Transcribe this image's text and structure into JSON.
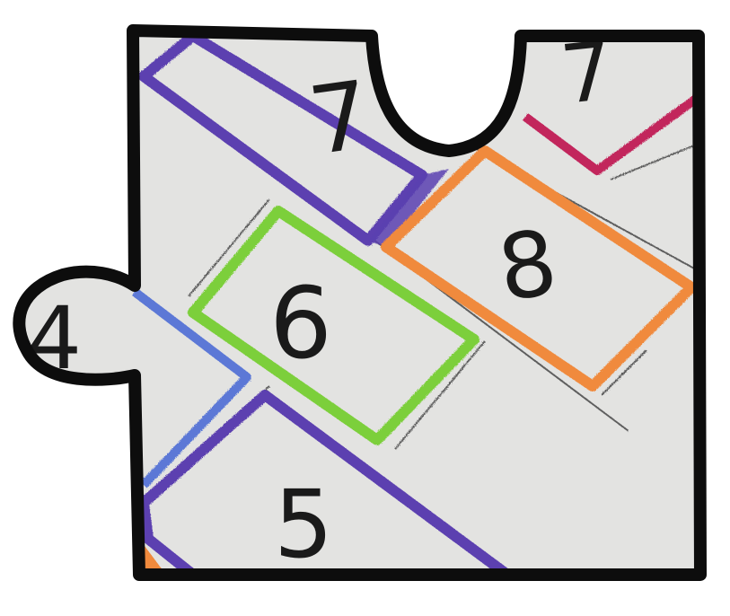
{
  "scene": {
    "description_kind": "hand-drawn hopscotch puzzle piece",
    "squares": [
      {
        "label": "7",
        "color": "#5b3fb0"
      },
      {
        "label": "7",
        "color": "#c2255c"
      },
      {
        "label": "8",
        "color": "#f08a3c"
      },
      {
        "label": "6",
        "color": "#7ccf3a"
      },
      {
        "label": "4",
        "color": "#5b78d6"
      },
      {
        "label": "5",
        "color": "#5b3fb0"
      }
    ],
    "colors": {
      "outline": "#0d0d0d",
      "paper": "#e3e3e1",
      "ink": "#1a1a1a"
    }
  }
}
